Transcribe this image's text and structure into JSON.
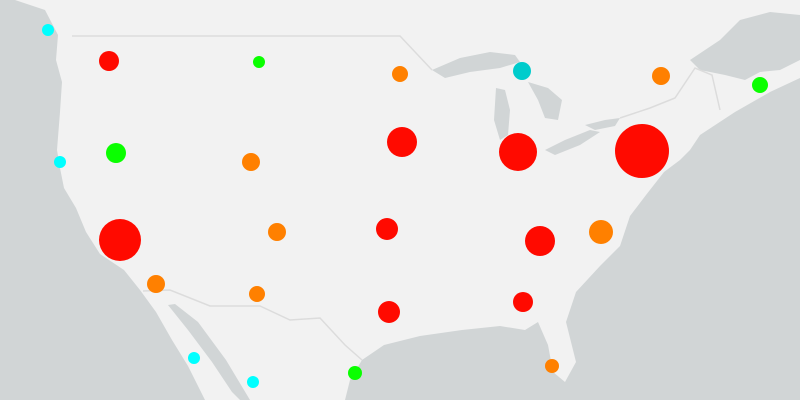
{
  "map": {
    "colors": {
      "water": "#d1d5d6",
      "land": "#f2f2f2",
      "border": "#dcdcdc",
      "red": "#ff0a00",
      "orange": "#ff8000",
      "green": "#0aff00",
      "cyan": "#00ffff",
      "teal": "#00cccc"
    },
    "markers": [
      {
        "category": "cyan",
        "size": 1
      },
      {
        "category": "red",
        "size": 2
      },
      {
        "category": "green",
        "size": 1
      },
      {
        "category": "orange",
        "size": 1
      },
      {
        "category": "teal",
        "size": 1
      },
      {
        "category": "orange",
        "size": 1
      },
      {
        "category": "green",
        "size": 1
      },
      {
        "category": "cyan",
        "size": 1
      },
      {
        "category": "green",
        "size": 2
      },
      {
        "category": "orange",
        "size": 1
      },
      {
        "category": "red",
        "size": 3
      },
      {
        "category": "red",
        "size": 4
      },
      {
        "category": "red",
        "size": 5
      },
      {
        "category": "red",
        "size": 4
      },
      {
        "category": "orange",
        "size": 1
      },
      {
        "category": "red",
        "size": 2
      },
      {
        "category": "red",
        "size": 3
      },
      {
        "category": "orange",
        "size": 2
      },
      {
        "category": "orange",
        "size": 1
      },
      {
        "category": "orange",
        "size": 1
      },
      {
        "category": "red",
        "size": 2
      },
      {
        "category": "red",
        "size": 2
      },
      {
        "category": "cyan",
        "size": 1
      },
      {
        "category": "green",
        "size": 1
      },
      {
        "category": "cyan",
        "size": 1
      },
      {
        "category": "orange",
        "size": 1
      }
    ]
  }
}
